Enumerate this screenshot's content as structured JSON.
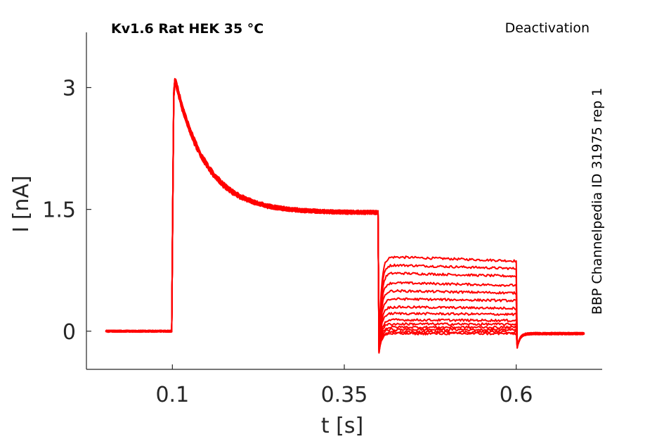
{
  "chart_data": {
    "type": "line",
    "title": "Kv1.6  Rat  HEK  35 °C",
    "subtitle": "Deactivation",
    "side_note": "BBP Channelpedia ID 31975 rep 1",
    "xlabel": "t [s]",
    "ylabel": "I [nA]",
    "xlim": [
      -0.025,
      0.725
    ],
    "ylim": [
      -0.47,
      3.68
    ],
    "xticks": [
      0.1,
      0.35,
      0.6
    ],
    "xtick_labels": [
      "0.1",
      "0.35",
      "0.6"
    ],
    "yticks": [
      0,
      1.5,
      3
    ],
    "ytick_labels": [
      "0",
      "1.5",
      "3"
    ],
    "grid": false,
    "series_color": "#ff0000",
    "protocol": {
      "t_start": 0.003,
      "t_step_on": 0.1,
      "t_step_off": 0.4,
      "t_tail_off": 0.6,
      "t_end": 0.7,
      "baseline": 0.0,
      "peak": 3.25,
      "step_plateau": 1.46,
      "post_tail_level": -0.03
    },
    "tail_levels": [
      0.92,
      0.82,
      0.72,
      0.6,
      0.5,
      0.4,
      0.3,
      0.22,
      0.14,
      0.09,
      0.05,
      0.02,
      -0.01,
      -0.03
    ]
  }
}
